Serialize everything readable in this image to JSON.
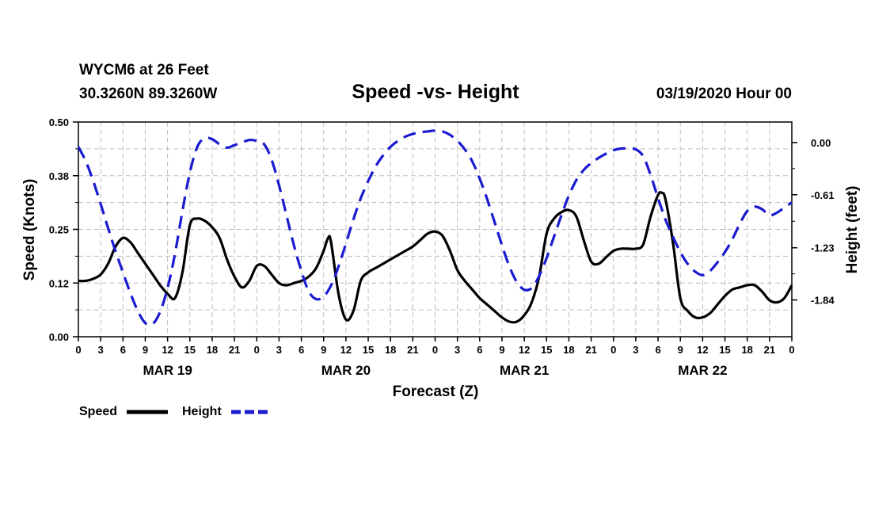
{
  "header": {
    "station": "WYCM6 at 26 Feet",
    "location": "30.3260N 89.3260W",
    "title": "Speed -vs- Height",
    "issued": "03/19/2020 Hour 00"
  },
  "colors": {
    "speed": "#000000",
    "height": "#1a1ad0",
    "grid": "#bdbdbd"
  },
  "legend": {
    "speed": "Speed",
    "height": "Height"
  },
  "chart_data": {
    "type": "line",
    "title": "Speed -vs- Height",
    "xlabel": "Forecast (Z)",
    "ylabel_left": "Speed (Knots)",
    "ylabel_right": "Height (feet)",
    "xlim": [
      0,
      96
    ],
    "ylim_left": [
      0,
      0.5
    ],
    "ylim_right": [
      -2.27,
      0.24
    ],
    "left_ticks": [
      {
        "value": 0.0,
        "label": "0.00"
      },
      {
        "value": 0.125,
        "label": "0.12"
      },
      {
        "value": 0.25,
        "label": "0.25"
      },
      {
        "value": 0.375,
        "label": "0.38"
      },
      {
        "value": 0.5,
        "label": "0.50"
      }
    ],
    "right_ticks": [
      {
        "value": 0.0,
        "label": "0.00"
      },
      {
        "value": -0.61,
        "label": "-0.61"
      },
      {
        "value": -1.23,
        "label": "-1.23"
      },
      {
        "value": -1.84,
        "label": "-1.84"
      }
    ],
    "x_ticks": [
      {
        "hour": 0,
        "label": "0"
      },
      {
        "hour": 3,
        "label": "3"
      },
      {
        "hour": 6,
        "label": "6"
      },
      {
        "hour": 9,
        "label": "9"
      },
      {
        "hour": 12,
        "label": "12"
      },
      {
        "hour": 15,
        "label": "15"
      },
      {
        "hour": 18,
        "label": "18"
      },
      {
        "hour": 21,
        "label": "21"
      },
      {
        "hour": 24,
        "label": "0"
      },
      {
        "hour": 27,
        "label": "3"
      },
      {
        "hour": 30,
        "label": "6"
      },
      {
        "hour": 33,
        "label": "9"
      },
      {
        "hour": 36,
        "label": "12"
      },
      {
        "hour": 39,
        "label": "15"
      },
      {
        "hour": 42,
        "label": "18"
      },
      {
        "hour": 45,
        "label": "21"
      },
      {
        "hour": 48,
        "label": "0"
      },
      {
        "hour": 51,
        "label": "3"
      },
      {
        "hour": 54,
        "label": "6"
      },
      {
        "hour": 57,
        "label": "9"
      },
      {
        "hour": 60,
        "label": "12"
      },
      {
        "hour": 63,
        "label": "15"
      },
      {
        "hour": 66,
        "label": "18"
      },
      {
        "hour": 69,
        "label": "21"
      },
      {
        "hour": 72,
        "label": "0"
      },
      {
        "hour": 75,
        "label": "3"
      },
      {
        "hour": 78,
        "label": "6"
      },
      {
        "hour": 81,
        "label": "9"
      },
      {
        "hour": 84,
        "label": "12"
      },
      {
        "hour": 87,
        "label": "15"
      },
      {
        "hour": 90,
        "label": "18"
      },
      {
        "hour": 93,
        "label": "21"
      },
      {
        "hour": 96,
        "label": "0"
      }
    ],
    "day_labels": [
      {
        "hour": 12,
        "label": "MAR 19"
      },
      {
        "hour": 36,
        "label": "MAR 20"
      },
      {
        "hour": 60,
        "label": "MAR 21"
      },
      {
        "hour": 84,
        "label": "MAR 22"
      }
    ],
    "series": [
      {
        "name": "Speed",
        "axis": "left",
        "style": "solid",
        "x": [
          0,
          1,
          2,
          3,
          4,
          5,
          6,
          7,
          8,
          9,
          10,
          11,
          12,
          13,
          14,
          15,
          16,
          17,
          18,
          19,
          20,
          21,
          22,
          23,
          24,
          25,
          26,
          27,
          28,
          29,
          30,
          31,
          32,
          33,
          33.6,
          34,
          35,
          36,
          37,
          38,
          39,
          40,
          41,
          42,
          43,
          44,
          45,
          46,
          47,
          48,
          49,
          50,
          51,
          52,
          53,
          54,
          55,
          56,
          57,
          58,
          59,
          60,
          61,
          62,
          63,
          64,
          65,
          66,
          67,
          68,
          69,
          70,
          71,
          72,
          73,
          74,
          75,
          76,
          77,
          78,
          78.5,
          79,
          80,
          81,
          82,
          83,
          84,
          85,
          86,
          87,
          88,
          89,
          90,
          91,
          92,
          93,
          94,
          95,
          96
        ],
        "values": [
          0.13,
          0.13,
          0.135,
          0.145,
          0.17,
          0.21,
          0.23,
          0.22,
          0.195,
          0.17,
          0.145,
          0.12,
          0.1,
          0.09,
          0.15,
          0.26,
          0.275,
          0.27,
          0.255,
          0.23,
          0.18,
          0.14,
          0.115,
          0.13,
          0.165,
          0.165,
          0.145,
          0.125,
          0.12,
          0.125,
          0.13,
          0.14,
          0.16,
          0.2,
          0.23,
          0.22,
          0.1,
          0.04,
          0.06,
          0.13,
          0.15,
          0.16,
          0.17,
          0.18,
          0.19,
          0.2,
          0.21,
          0.225,
          0.24,
          0.245,
          0.235,
          0.2,
          0.155,
          0.13,
          0.11,
          0.09,
          0.075,
          0.06,
          0.045,
          0.035,
          0.035,
          0.05,
          0.08,
          0.14,
          0.24,
          0.275,
          0.29,
          0.295,
          0.28,
          0.225,
          0.175,
          0.17,
          0.185,
          0.2,
          0.205,
          0.205,
          0.205,
          0.215,
          0.28,
          0.33,
          0.335,
          0.32,
          0.22,
          0.09,
          0.06,
          0.045,
          0.045,
          0.055,
          0.075,
          0.095,
          0.11,
          0.115,
          0.12,
          0.12,
          0.105,
          0.085,
          0.08,
          0.09,
          0.12
        ]
      },
      {
        "name": "Height",
        "axis": "right",
        "style": "dashed",
        "x": [
          0,
          1,
          2,
          3,
          4,
          5,
          6,
          7,
          8,
          9,
          10,
          11,
          12,
          13,
          14,
          15,
          16,
          17,
          18,
          19,
          20,
          21,
          22,
          23,
          24,
          25,
          26,
          27,
          28,
          29,
          30,
          31,
          32,
          33,
          34,
          35,
          36,
          37,
          38,
          39,
          40,
          41,
          42,
          43,
          44,
          45,
          46,
          47,
          48,
          49,
          50,
          51,
          52,
          53,
          54,
          55,
          56,
          57,
          58,
          59,
          60,
          61,
          62,
          63,
          64,
          65,
          66,
          67,
          68,
          69,
          70,
          71,
          72,
          73,
          74,
          75,
          76,
          77,
          78,
          79,
          80,
          81,
          82,
          83,
          84,
          85,
          86,
          87,
          88,
          89,
          90,
          91,
          92,
          93,
          94,
          95,
          96
        ],
        "values": [
          -0.05,
          -0.22,
          -0.45,
          -0.72,
          -1.0,
          -1.27,
          -1.52,
          -1.76,
          -1.97,
          -2.11,
          -2.12,
          -1.98,
          -1.7,
          -1.3,
          -0.8,
          -0.35,
          -0.05,
          0.05,
          0.04,
          -0.02,
          -0.06,
          -0.03,
          0.0,
          0.03,
          0.02,
          -0.02,
          -0.2,
          -0.5,
          -0.85,
          -1.2,
          -1.5,
          -1.74,
          -1.83,
          -1.8,
          -1.67,
          -1.45,
          -1.18,
          -0.9,
          -0.65,
          -0.45,
          -0.28,
          -0.15,
          -0.05,
          0.02,
          0.07,
          0.1,
          0.12,
          0.13,
          0.14,
          0.13,
          0.09,
          0.02,
          -0.08,
          -0.22,
          -0.42,
          -0.66,
          -0.93,
          -1.2,
          -1.45,
          -1.63,
          -1.72,
          -1.7,
          -1.56,
          -1.35,
          -1.1,
          -0.85,
          -0.62,
          -0.44,
          -0.32,
          -0.24,
          -0.18,
          -0.13,
          -0.09,
          -0.07,
          -0.07,
          -0.08,
          -0.16,
          -0.38,
          -0.65,
          -0.9,
          -1.1,
          -1.28,
          -1.42,
          -1.51,
          -1.55,
          -1.5,
          -1.4,
          -1.28,
          -1.13,
          -0.95,
          -0.8,
          -0.75,
          -0.78,
          -0.85,
          -0.82,
          -0.76,
          -0.7
        ]
      }
    ]
  }
}
